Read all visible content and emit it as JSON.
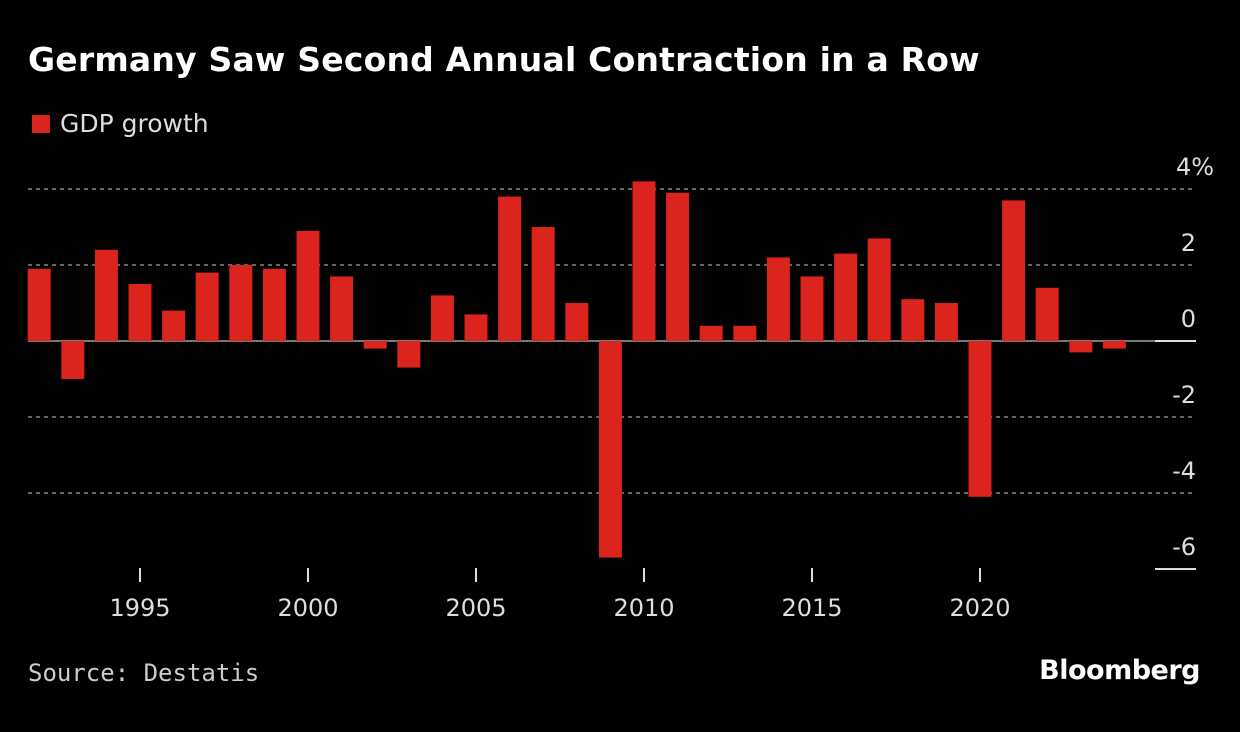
{
  "title": "Germany Saw Second Annual Contraction in a Row",
  "source": "Source: Destatis",
  "brand": "Bloomberg",
  "chart_data": {
    "type": "bar",
    "title": "Germany Saw Second Annual Contraction in a Row",
    "series": [
      {
        "name": "GDP growth",
        "color": "#dc241f",
        "x": [
          1992,
          1993,
          1994,
          1995,
          1996,
          1997,
          1998,
          1999,
          2000,
          2001,
          2002,
          2003,
          2004,
          2005,
          2006,
          2007,
          2008,
          2009,
          2010,
          2011,
          2012,
          2013,
          2014,
          2015,
          2016,
          2017,
          2018,
          2019,
          2020,
          2021,
          2022,
          2023,
          2024
        ],
        "values": [
          1.9,
          -1.0,
          2.4,
          1.5,
          0.8,
          1.8,
          2.0,
          1.9,
          2.9,
          1.7,
          -0.2,
          -0.7,
          1.2,
          0.7,
          3.8,
          3.0,
          1.0,
          -5.7,
          4.2,
          3.9,
          0.4,
          0.4,
          2.2,
          1.7,
          2.3,
          2.7,
          1.1,
          1.0,
          -4.1,
          3.7,
          1.4,
          -0.3,
          -0.2
        ]
      }
    ],
    "x_ticks": [
      "1995",
      "2000",
      "2005",
      "2010",
      "2015",
      "2020"
    ],
    "y_ticks": [
      "4%",
      "2",
      "0",
      "-2",
      "-4",
      "-6"
    ],
    "y_tick_values": [
      4,
      2,
      0,
      -2,
      -4,
      -6
    ],
    "ylim": [
      -6,
      4
    ],
    "xlabel": "",
    "ylabel": "",
    "grid": true,
    "legend_position": "top-left",
    "y_axis_side": "right"
  }
}
